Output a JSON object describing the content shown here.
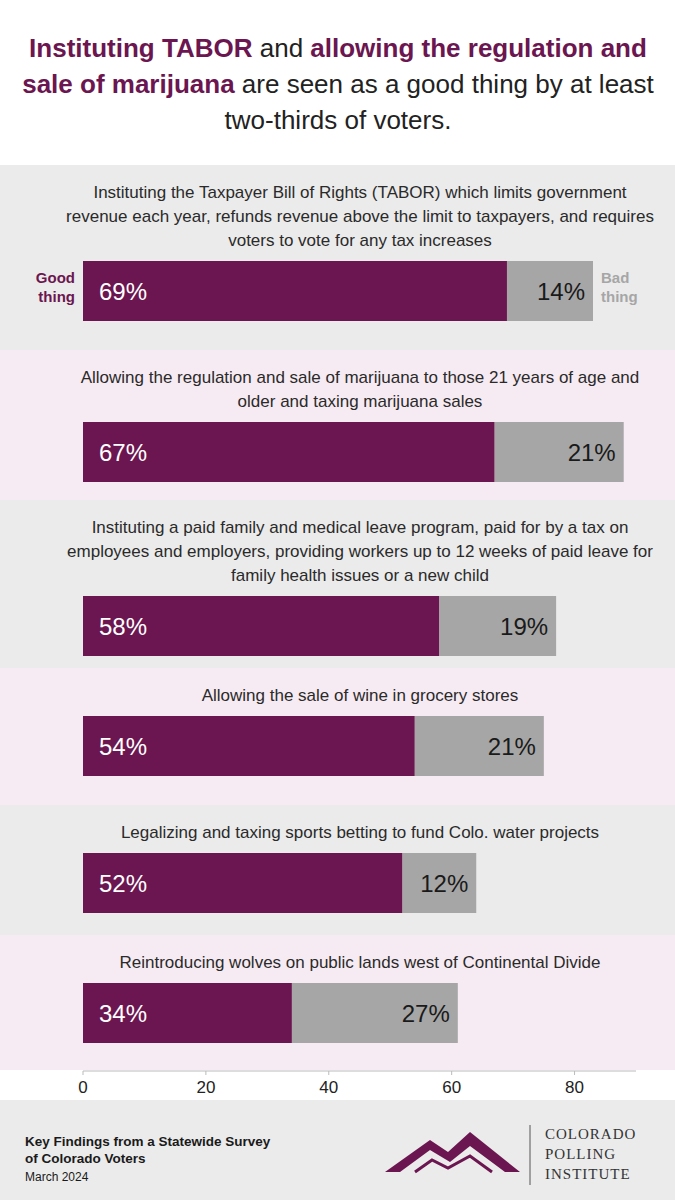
{
  "chart_data": {
    "type": "bar",
    "title": [
      "Instituting TABOR",
      " and ",
      "allowing the regulation and sale of marijuana",
      " are seen as a good thing by at least two-thirds of voters."
    ],
    "orientation": "horizontal",
    "stacked": true,
    "data_labels": true,
    "grid": false,
    "categories": [
      "Instituting the Taxpayer Bill of Rights (TABOR) which limits government revenue each year, refunds revenue above the limit to taxpayers, and requires voters to vote for any tax increases",
      "Allowing the regulation and sale of marijuana to those 21 years of age and older and taxing marijuana sales",
      "Instituting a paid family and medical leave program, paid for by a tax on employees and employers, providing workers up to 12 weeks of paid leave for family health issues or a new child",
      "Allowing the sale of wine in grocery stores",
      "Legalizing and taxing sports betting to fund Colo. water projects",
      "Reintroducing wolves on public lands west of Continental Divide"
    ],
    "series": [
      {
        "name": "Good thing",
        "color": "#6b1650",
        "values": [
          69,
          67,
          58,
          54,
          52,
          34
        ],
        "value_labels": [
          "69%",
          "67%",
          "58%",
          "54%",
          "52%",
          "34%"
        ]
      },
      {
        "name": "Bad thing",
        "color": "#a6a6a6",
        "values": [
          14,
          21,
          19,
          21,
          12,
          27
        ],
        "value_labels": [
          "14%",
          "21%",
          "19%",
          "21%",
          "12%",
          "27%"
        ]
      }
    ],
    "xlim": [
      0,
      90
    ],
    "xticks": [
      0,
      20,
      40,
      60,
      80
    ]
  },
  "footer": {
    "text": "Key Findings from a Statewide Survey of Colorado Voters",
    "date": "March 2024",
    "org": [
      "COLORADO",
      "POLLING",
      "INSTITUTE"
    ]
  }
}
